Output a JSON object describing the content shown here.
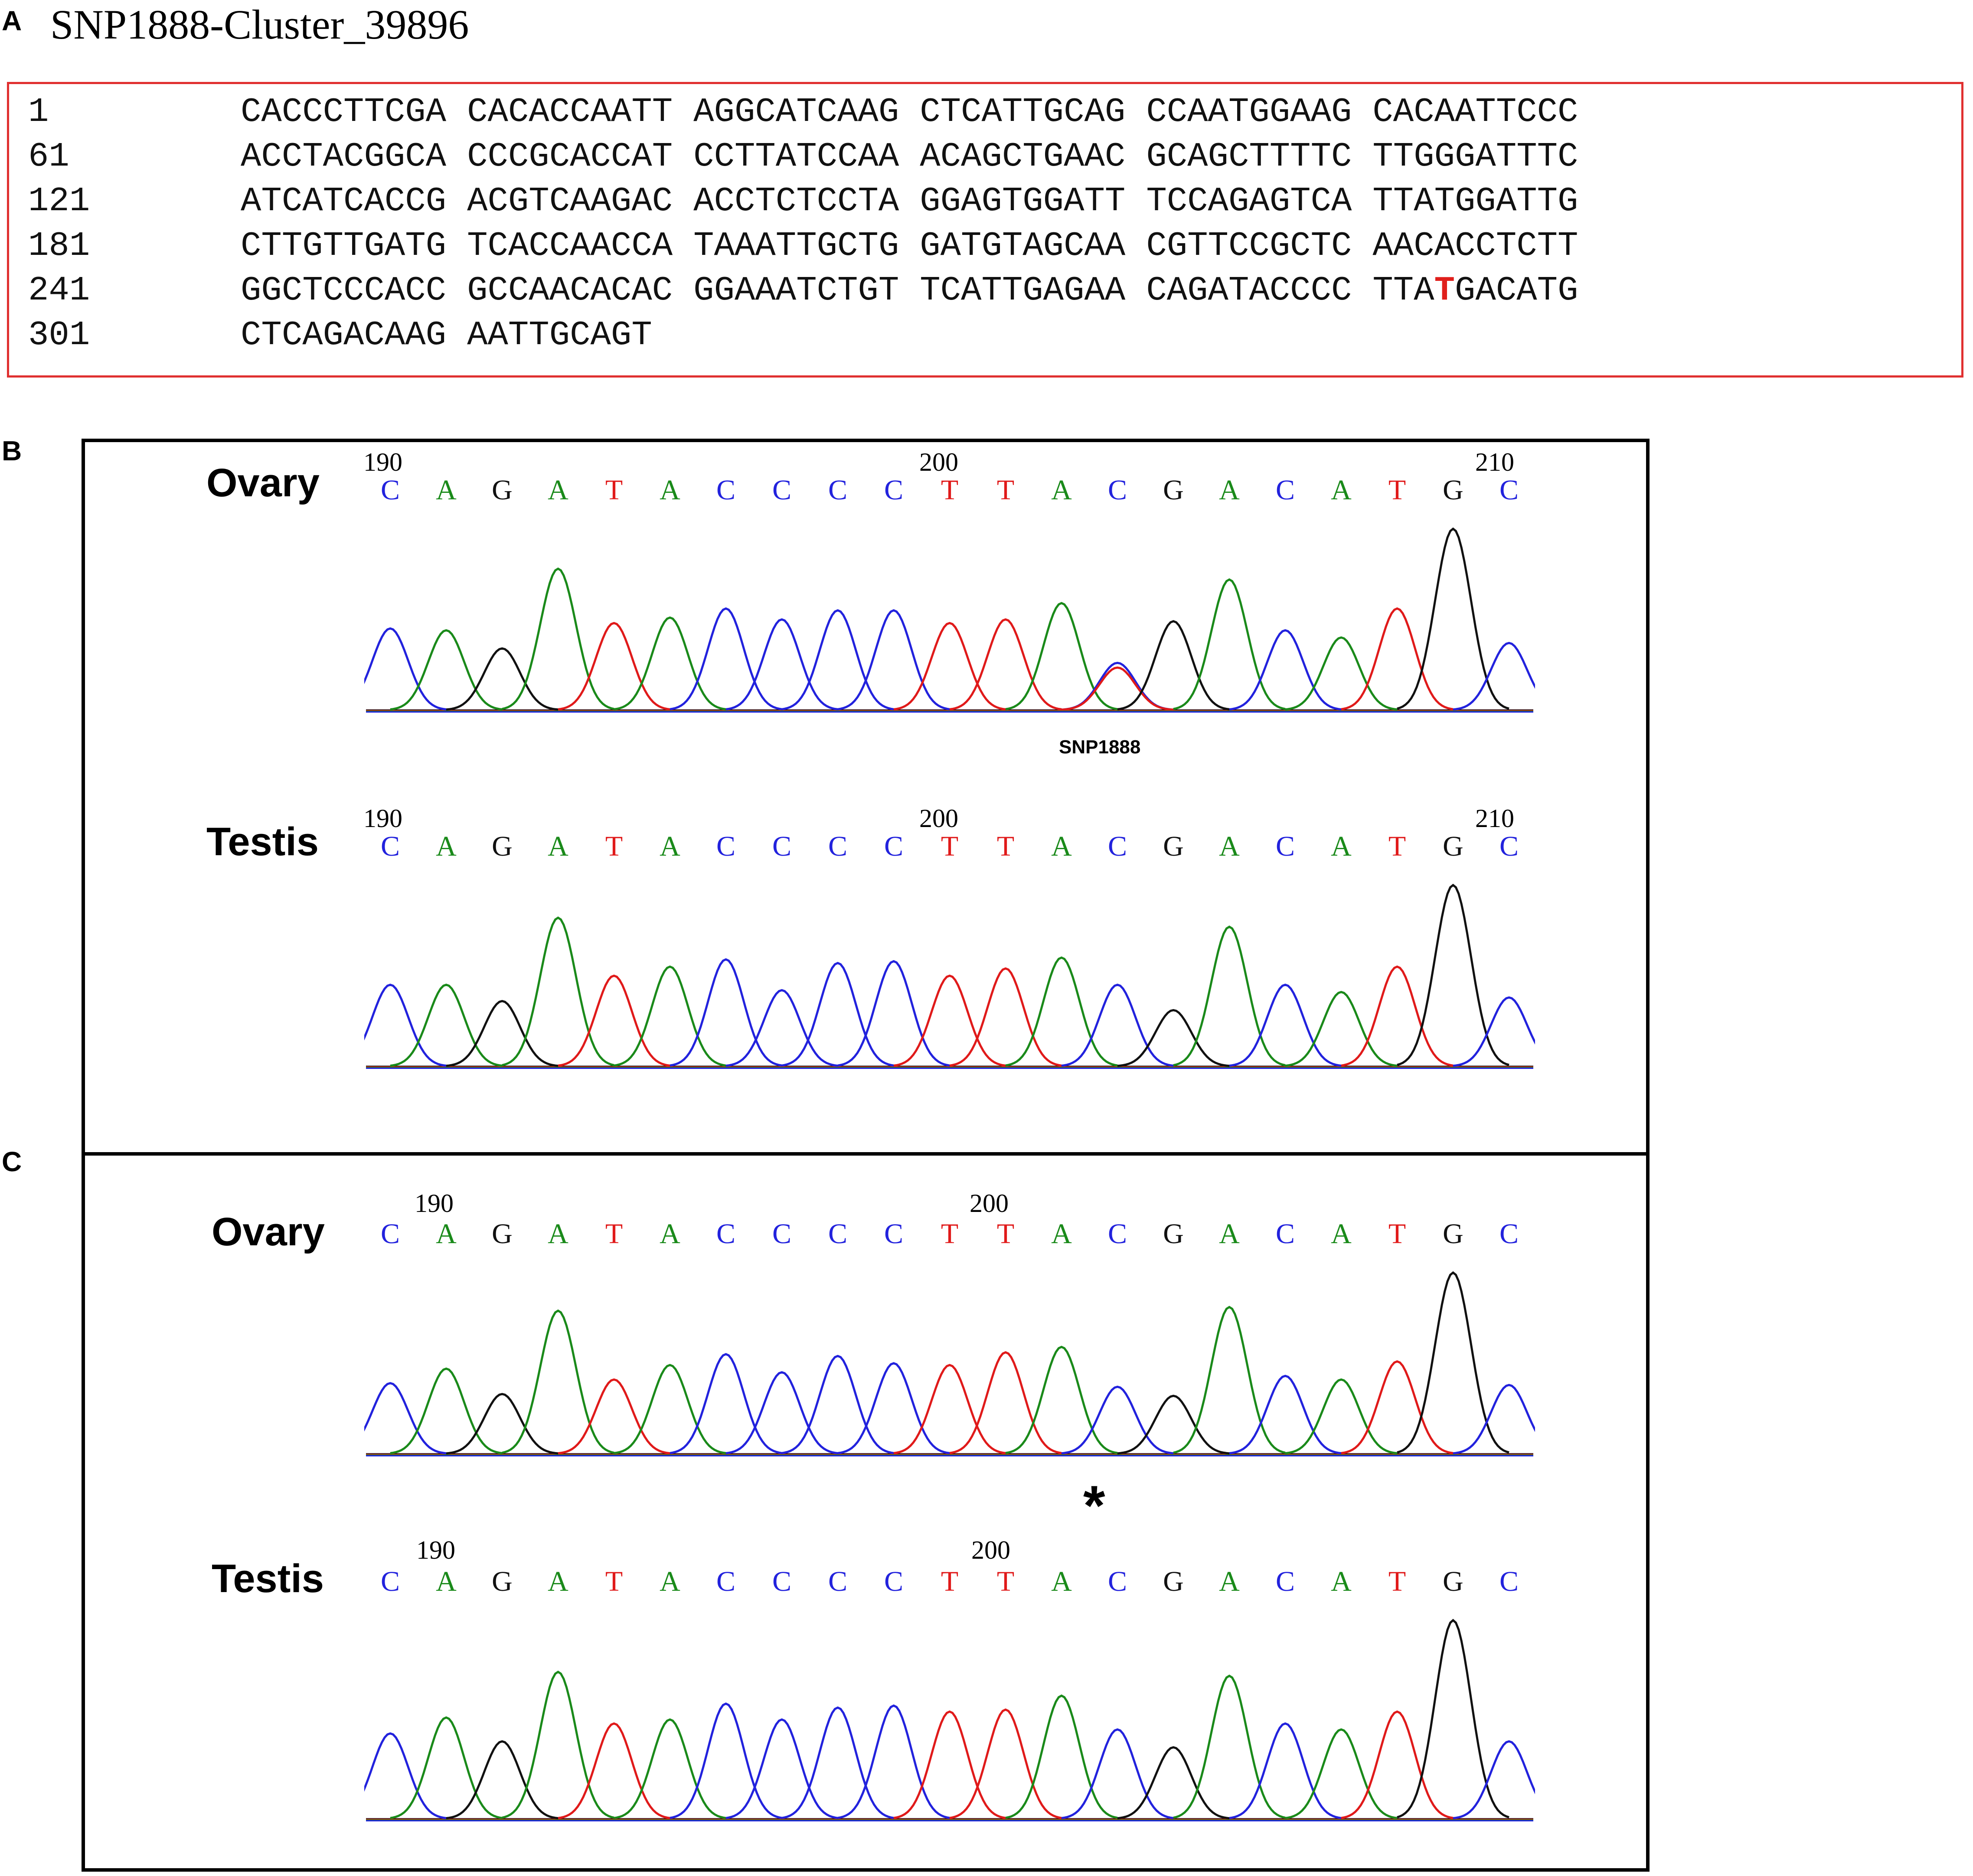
{
  "panel_a": {
    "letter": "A",
    "title": "SNP1888-Cluster_39896",
    "rows": [
      {
        "pos": "1",
        "blocks": [
          "CACCCTTCGA",
          "CACACCAATT",
          "AGGCATCAAG",
          "CTCATTGCAG",
          "CCAATGGAAG",
          "CACAATTCCC"
        ]
      },
      {
        "pos": "61",
        "blocks": [
          "ACCTACGGCA",
          "CCCGCACCAT",
          "CCTTATCCAA",
          "ACAGCTGAAC",
          "GCAGCTTTTC",
          "TTGGGATTTC"
        ]
      },
      {
        "pos": "121",
        "blocks": [
          "ATCATCACCG",
          "ACGTCAAGAC",
          "ACCTCTCCTA",
          "GGAGTGGATT",
          "TCCAGAGTCA",
          "TTATGGATTG"
        ]
      },
      {
        "pos": "181",
        "blocks": [
          "CTTGTTGATG",
          "TCACCAACCA",
          "TAAATTGCTG",
          "GATGTAGCAA",
          "CGTTCCGCTC",
          "AACACCTCTT"
        ]
      },
      {
        "pos": "241",
        "blocks": [
          "GGCTCCCACC",
          "GCCAACACAC",
          "GGAAATCTGT",
          "TCATTGAGAA",
          "CAGATACCCC",
          "TTATGACATG"
        ]
      },
      {
        "pos": "301",
        "blocks": [
          "CTCAGACAAG",
          "AATTGCAGT"
        ]
      }
    ],
    "snp_highlight": {
      "row": 4,
      "block": 5,
      "char_index": 3,
      "color": "#e0201c"
    }
  },
  "panel_b": {
    "letter": "B",
    "snp_label": "SNP1888",
    "traces": [
      {
        "tissue": "Ovary",
        "ticks": [
          "190",
          "200",
          "210"
        ],
        "bases": "CAGATACCCCTTACGACATGC",
        "heights": [
          0.45,
          0.44,
          0.34,
          0.78,
          0.48,
          0.51,
          0.56,
          0.5,
          0.55,
          0.55,
          0.48,
          0.5,
          0.59,
          0.26,
          0.49,
          0.72,
          0.44,
          0.4,
          0.56,
          1.0,
          0.37
        ],
        "snp_index": 13
      },
      {
        "tissue": "Testis",
        "ticks": [
          "190",
          "200",
          "210"
        ],
        "bases": "CAGATACCCCTTACGACATGC",
        "heights": [
          0.45,
          0.45,
          0.36,
          0.82,
          0.5,
          0.55,
          0.59,
          0.42,
          0.57,
          0.58,
          0.5,
          0.54,
          0.6,
          0.45,
          0.31,
          0.77,
          0.45,
          0.41,
          0.55,
          1.0,
          0.38
        ],
        "snp_index": 13
      }
    ]
  },
  "panel_c": {
    "letter": "C",
    "asterisk": "*",
    "traces": [
      {
        "tissue": "Ovary",
        "ticks": [
          "190",
          "200"
        ],
        "bases": "CAGATACCCCTTACGACATGC",
        "heights": [
          0.39,
          0.47,
          0.33,
          0.79,
          0.41,
          0.49,
          0.55,
          0.45,
          0.54,
          0.5,
          0.49,
          0.56,
          0.59,
          0.37,
          0.32,
          0.81,
          0.43,
          0.41,
          0.51,
          1.0,
          0.38
        ],
        "snp_index": 13
      },
      {
        "tissue": "Testis",
        "ticks": [
          "190",
          "200"
        ],
        "bases": "CAGATACCCCTTACGACATGC",
        "heights": [
          0.43,
          0.51,
          0.39,
          0.74,
          0.48,
          0.5,
          0.58,
          0.5,
          0.56,
          0.57,
          0.54,
          0.55,
          0.62,
          0.45,
          0.36,
          0.72,
          0.48,
          0.45,
          0.54,
          1.0,
          0.39
        ],
        "snp_index": 13
      }
    ]
  },
  "base_colors": {
    "A": "#1a8a1a",
    "C": "#2222dd",
    "G": "#111111",
    "T": "#e01a1a"
  }
}
